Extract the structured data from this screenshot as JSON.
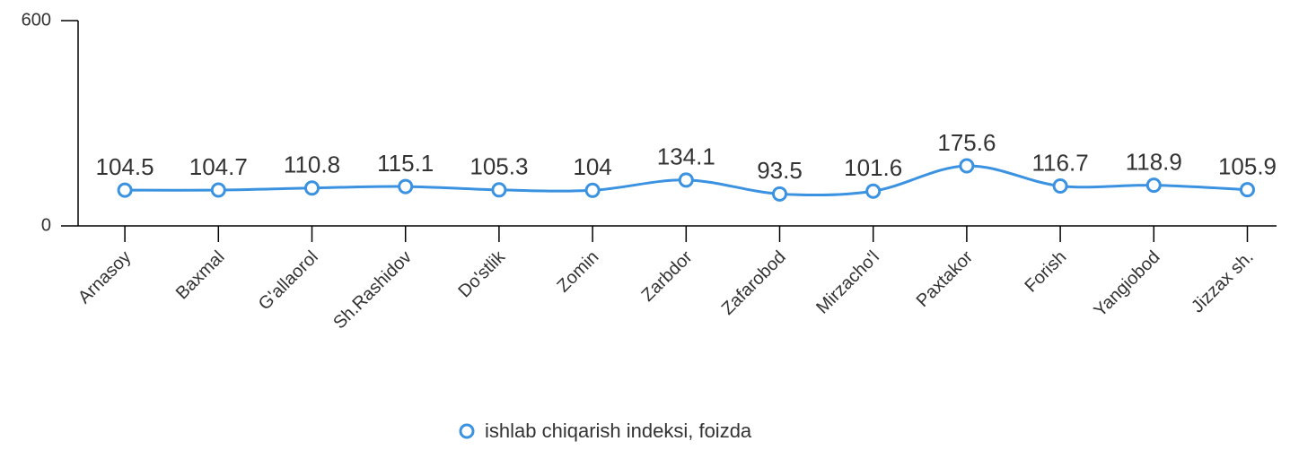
{
  "chart_data": {
    "type": "line",
    "categories": [
      "Arnasoy",
      "Baxmal",
      "G'allaorol",
      "Sh.Rashidov",
      "Do'stlik",
      "Zomin",
      "Zarbdor",
      "Zafarobod",
      "Mirzacho'l",
      "Paxtakor",
      "Forish",
      "Yangiobod",
      "Jizzax sh."
    ],
    "series": [
      {
        "name": "ishlab chiqarish indeksi, foizda",
        "color": "#3a92e0",
        "values": [
          104.5,
          104.7,
          110.8,
          115.1,
          105.3,
          104,
          134.1,
          93.5,
          101.6,
          175.6,
          116.7,
          118.9,
          105.9
        ]
      }
    ],
    "ylim": [
      0,
      600
    ],
    "yticks": [
      0,
      600
    ],
    "smooth": true,
    "legend": "bottom"
  }
}
